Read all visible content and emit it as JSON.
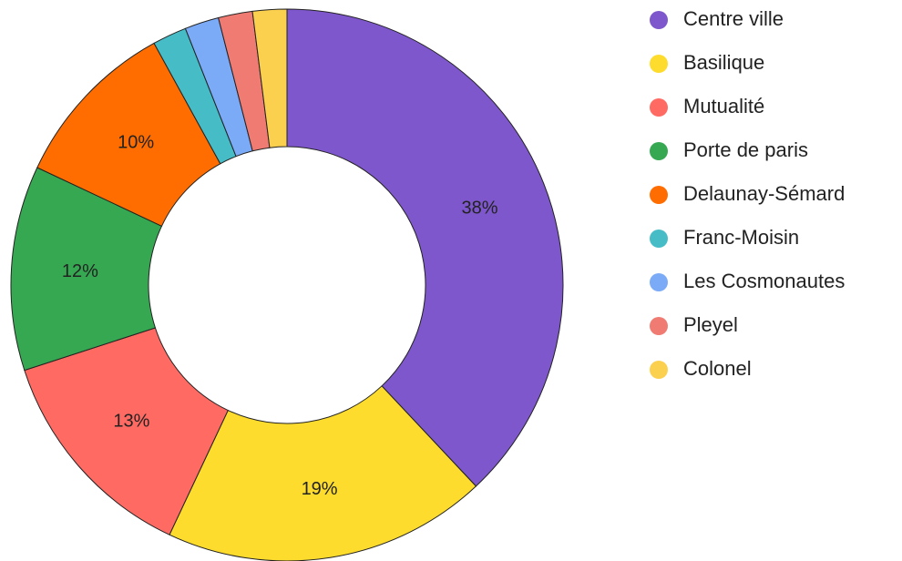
{
  "chart_data": {
    "type": "pie",
    "categories": [
      "Centre ville",
      "Basilique",
      "Mutualité",
      "Porte de paris",
      "Delaunay-Sémard",
      "Franc-Moisin",
      "Les Cosmonautes",
      "Pleyel",
      "Colonel"
    ],
    "values": [
      38,
      19,
      13,
      12,
      10,
      2,
      2,
      2,
      2
    ],
    "value_labels": [
      "38%",
      "19%",
      "13%",
      "12%",
      "10%",
      null,
      null,
      null,
      null
    ],
    "colors": [
      "#7e57cc",
      "#fddc2e",
      "#ff6a63",
      "#36a852",
      "#ff6d00",
      "#46bdc6",
      "#7baaf7",
      "#f07b72",
      "#fcd04f"
    ],
    "donut": true
  }
}
